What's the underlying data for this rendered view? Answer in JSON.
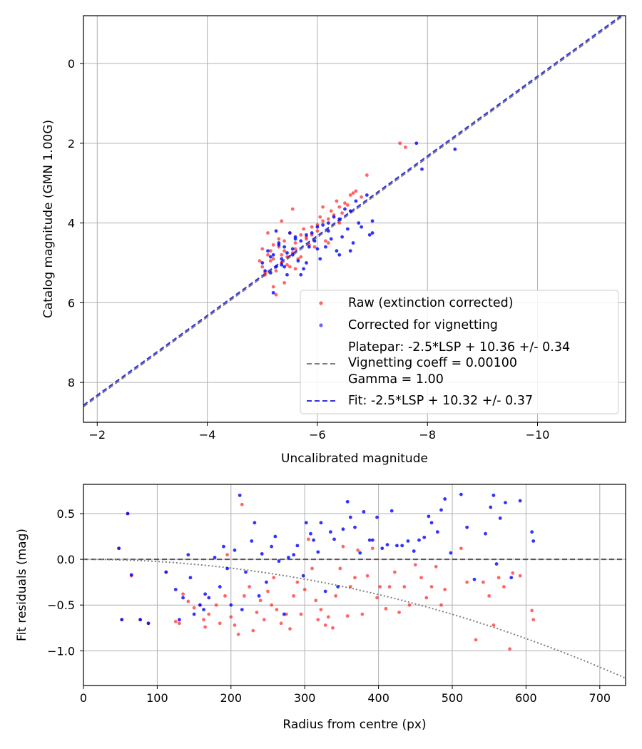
{
  "chart_data": [
    {
      "type": "scatter",
      "title": "",
      "xlabel": "Uncalibrated magnitude",
      "ylabel": "Catalog magnitude (GMN 1.00G)",
      "xlim": [
        -1.75,
        -11.6
      ],
      "ylim": [
        9.0,
        -1.2
      ],
      "x_inverted": true,
      "y_inverted": true,
      "grid": true,
      "legend_position": "lower-right",
      "xticks": [
        -2,
        -4,
        -6,
        -8,
        -10
      ],
      "xtick_labels": [
        "−2",
        "−4",
        "−6",
        "−8",
        "−10"
      ],
      "yticks": [
        0,
        2,
        4,
        6,
        8
      ],
      "ytick_labels": [
        "0",
        "2",
        "4",
        "6",
        "8"
      ],
      "legend": {
        "raw": "Raw (extinction corrected)",
        "corrected": "Corrected for vignetting",
        "platepar_lines": [
          "Platepar: -2.5*LSP + 10.36 +/- 0.34",
          "Vignetting coeff = 0.00100",
          "Gamma = 1.00"
        ],
        "fit": "Fit: -2.5*LSP + 10.32 +/- 0.37"
      },
      "lines": [
        {
          "name": "Platepar",
          "slope": 1.0,
          "intercept": 10.36,
          "color": "#808080",
          "style": "dashed"
        },
        {
          "name": "Fit",
          "slope": 1.0,
          "intercept": 10.32,
          "color": "#3333dd",
          "style": "dashed"
        }
      ],
      "series": [
        {
          "name": "Raw (extinction corrected)",
          "color": "#ff0000",
          "x": [
            -5.1,
            -5.2,
            -5.3,
            -5.4,
            -5.0,
            -5.6,
            -5.8,
            -6.0,
            -6.2,
            -6.4,
            -6.6,
            -5.25,
            -5.35,
            -5.45,
            -5.15,
            -5.55,
            -5.7,
            -5.9,
            -6.1,
            -6.3,
            -6.5,
            -6.7,
            -6.9,
            -5.05,
            -5.2,
            -5.4,
            -5.6,
            -5.8,
            -6.0,
            -6.25,
            -6.55,
            -7.5,
            -7.6,
            -5.4,
            -5.2,
            -5.0,
            -5.5,
            -5.75,
            -6.05,
            -6.35,
            -6.65,
            -5.3,
            -5.1,
            -5.45,
            -5.65,
            -5.85,
            -6.15,
            -6.45,
            -5.35,
            -5.55,
            -4.95,
            -5.25,
            -5.6,
            -5.95,
            -6.2,
            -6.8,
            -5.15,
            -5.05,
            -5.7,
            -6.1,
            -5.35,
            -5.5,
            -5.9,
            -6.4
          ],
          "y": [
            4.8,
            4.9,
            4.6,
            4.7,
            5.1,
            4.5,
            4.4,
            4.2,
            3.9,
            3.6,
            3.3,
            5.2,
            5.0,
            4.85,
            4.95,
            4.75,
            4.3,
            4.1,
            3.95,
            3.8,
            3.5,
            3.2,
            2.8,
            5.3,
            4.55,
            4.45,
            4.65,
            4.35,
            4.05,
            3.7,
            3.55,
            2.0,
            2.1,
            5.5,
            5.6,
            4.65,
            4.25,
            4.15,
            3.85,
            3.45,
            3.25,
            4.4,
            4.25,
            5.05,
            4.9,
            4.55,
            4.45,
            3.75,
            3.95,
            3.65,
            4.95,
            5.8,
            5.15,
            4.6,
            4.5,
            3.35,
            4.7,
            5.25,
            4.85,
            3.6,
            4.8,
            5.1,
            4.3,
            4.0
          ]
        },
        {
          "name": "Corrected for vignetting",
          "color": "#0000ff",
          "x": [
            -5.1,
            -5.2,
            -5.3,
            -5.4,
            -5.0,
            -5.6,
            -5.8,
            -6.0,
            -6.2,
            -6.4,
            -6.6,
            -5.25,
            -5.35,
            -5.45,
            -5.15,
            -5.55,
            -5.7,
            -5.9,
            -6.1,
            -6.3,
            -6.5,
            -6.7,
            -6.9,
            -7.0,
            -7.8,
            -7.9,
            -8.5,
            -5.05,
            -5.45,
            -5.75,
            -6.05,
            -6.35,
            -6.65,
            -6.95,
            -5.65,
            -5.85,
            -6.25,
            -6.55,
            -5.15,
            -5.35,
            -5.55,
            -6.15,
            -6.45,
            -6.75,
            -5.95,
            -5.4,
            -5.8,
            -6.6,
            -7.0,
            -5.25,
            -5.5,
            -6.0,
            -6.4,
            -6.8,
            -5.2,
            -5.7,
            -5.3,
            -6.2,
            -5.6
          ],
          "y": [
            4.7,
            4.8,
            4.5,
            4.6,
            5.0,
            4.4,
            4.3,
            4.1,
            4.0,
            3.9,
            3.7,
            5.1,
            4.9,
            4.75,
            4.85,
            4.65,
            4.45,
            4.25,
            4.05,
            3.85,
            3.65,
            3.45,
            3.3,
            3.95,
            2.0,
            2.65,
            2.15,
            5.2,
            5.3,
            5.15,
            4.9,
            4.7,
            4.5,
            4.3,
            4.95,
            4.6,
            4.4,
            4.15,
            5.25,
            5.05,
            4.8,
            4.6,
            4.35,
            4.0,
            4.45,
            5.1,
            5.0,
            4.7,
            4.25,
            4.2,
            4.25,
            4.65,
            4.8,
            4.1,
            5.75,
            5.3,
            4.55,
            4.2,
            4.35
          ]
        }
      ]
    },
    {
      "type": "scatter",
      "title": "",
      "xlabel": "Radius from centre (px)",
      "ylabel": "Fit residuals (mag)",
      "xlim": [
        0,
        735
      ],
      "ylim": [
        -1.38,
        0.82
      ],
      "grid": true,
      "xticks": [
        0,
        100,
        200,
        300,
        400,
        500,
        600,
        700
      ],
      "xtick_labels": [
        "0",
        "100",
        "200",
        "300",
        "400",
        "500",
        "600",
        "700"
      ],
      "yticks": [
        0.5,
        0.0,
        -0.5,
        -1.0
      ],
      "ytick_labels": [
        "0.5",
        "0.0",
        "−0.5",
        "−1.0"
      ],
      "lines": [
        {
          "name": "zero",
          "value": 0.0,
          "color": "#555555",
          "style": "dashed"
        },
        {
          "name": "vignetting model",
          "coeff": 0.001,
          "color": "#808080",
          "style": "dotted"
        }
      ],
      "series": [
        {
          "name": "Raw (extinction corrected)",
          "color": "#ff0000",
          "x": [
            48,
            52,
            60,
            65,
            77,
            88,
            112,
            125,
            130,
            135,
            142,
            150,
            158,
            163,
            165,
            170,
            180,
            185,
            192,
            195,
            200,
            205,
            210,
            215,
            218,
            225,
            230,
            235,
            240,
            245,
            250,
            255,
            258,
            262,
            268,
            275,
            280,
            285,
            290,
            295,
            300,
            305,
            310,
            315,
            318,
            322,
            328,
            332,
            338,
            342,
            348,
            352,
            358,
            362,
            368,
            372,
            378,
            385,
            392,
            398,
            402,
            410,
            415,
            422,
            428,
            435,
            442,
            450,
            458,
            465,
            472,
            478,
            485,
            490,
            512,
            520,
            532,
            542,
            550,
            556,
            563,
            570,
            578,
            582,
            592,
            608,
            610
          ],
          "y": [
            0.12,
            -0.66,
            0.5,
            -0.18,
            -0.66,
            -0.7,
            -0.14,
            -0.68,
            -0.7,
            -0.38,
            -0.46,
            -0.53,
            -0.5,
            -0.66,
            -0.74,
            -0.6,
            -0.5,
            -0.7,
            -0.4,
            0.05,
            -0.63,
            -0.72,
            -0.82,
            0.6,
            -0.4,
            -0.3,
            -0.78,
            -0.58,
            -0.45,
            -0.66,
            -0.35,
            -0.5,
            -0.2,
            -0.55,
            -0.7,
            -0.6,
            -0.76,
            -0.4,
            -0.25,
            -0.6,
            -0.33,
            0.22,
            -0.1,
            -0.45,
            -0.66,
            -0.55,
            -0.72,
            -0.63,
            -0.75,
            -0.4,
            -0.1,
            0.14,
            -0.62,
            -0.3,
            -0.2,
            0.1,
            -0.6,
            -0.18,
            0.12,
            -0.42,
            -0.3,
            -0.54,
            -0.3,
            -0.14,
            -0.58,
            -0.3,
            -0.5,
            -0.06,
            -0.2,
            -0.42,
            -0.3,
            -0.08,
            -0.5,
            -0.33,
            0.12,
            -0.25,
            -0.88,
            -0.25,
            -0.4,
            -0.72,
            -0.2,
            -0.3,
            -0.98,
            -0.15,
            -0.18,
            -0.56,
            -0.66
          ]
        },
        {
          "name": "Corrected for vignetting",
          "color": "#0000ff",
          "x": [
            48,
            52,
            60,
            65,
            77,
            88,
            112,
            125,
            130,
            135,
            142,
            145,
            150,
            158,
            163,
            165,
            170,
            178,
            185,
            190,
            195,
            200,
            205,
            212,
            215,
            220,
            228,
            232,
            238,
            242,
            248,
            255,
            260,
            265,
            272,
            278,
            285,
            290,
            298,
            302,
            308,
            312,
            318,
            322,
            328,
            335,
            340,
            345,
            352,
            358,
            362,
            368,
            375,
            380,
            388,
            392,
            398,
            405,
            412,
            418,
            425,
            432,
            440,
            448,
            455,
            462,
            468,
            472,
            480,
            485,
            490,
            498,
            512,
            520,
            530,
            545,
            552,
            556,
            560,
            565,
            572,
            580,
            592,
            608,
            610
          ],
          "y": [
            0.12,
            -0.66,
            0.5,
            -0.17,
            -0.66,
            -0.7,
            -0.14,
            -0.33,
            -0.66,
            -0.42,
            0.05,
            -0.2,
            -0.6,
            -0.5,
            -0.55,
            -0.38,
            -0.42,
            0.02,
            -0.3,
            0.14,
            -0.1,
            -0.5,
            0.1,
            0.7,
            -0.55,
            -0.14,
            0.2,
            0.4,
            -0.4,
            0.06,
            -0.25,
            0.14,
            0.25,
            -0.02,
            -0.6,
            0.02,
            0.05,
            0.15,
            -0.18,
            0.4,
            0.28,
            0.21,
            0.08,
            0.4,
            -0.35,
            0.3,
            0.22,
            -0.3,
            0.33,
            0.63,
            0.46,
            0.35,
            0.07,
            0.52,
            0.21,
            0.21,
            0.46,
            0.12,
            0.16,
            0.53,
            0.15,
            0.15,
            0.2,
            0.09,
            0.21,
            0.24,
            0.47,
            0.4,
            0.3,
            0.54,
            0.66,
            0.07,
            0.71,
            0.35,
            -0.22,
            0.28,
            0.57,
            0.7,
            -0.05,
            0.45,
            0.62,
            -0.2,
            0.64,
            0.3,
            0.2
          ]
        }
      ]
    }
  ]
}
